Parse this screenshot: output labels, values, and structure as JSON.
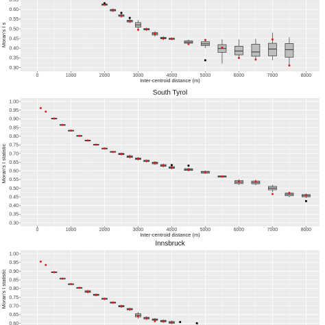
{
  "style": {
    "panel_background": "#ebebeb",
    "grid_major": "#ffffff",
    "box_fill": "#bdbdbd",
    "box_stroke": "#333333",
    "mean_point": "#e41a1c",
    "outlier_point": "#000000"
  },
  "chart_data": [
    {
      "type": "boxplot",
      "title": "",
      "xlabel": "Inter-centroid distance (m)",
      "ylabel": "Moran's I s",
      "xlim": [
        -500,
        8400
      ],
      "ylim": [
        0.28,
        0.67
      ],
      "xticks": [
        0,
        1000,
        2000,
        3000,
        4000,
        5000,
        6000,
        7000,
        8000
      ],
      "yticks": [
        0.3,
        0.35,
        0.4,
        0.45,
        0.5,
        0.55,
        0.6,
        0.65
      ],
      "ytick_labels": [
        "0.30",
        "0.35",
        "0.40",
        "0.45",
        "0.50",
        "0.55",
        "0.60",
        "0.65"
      ],
      "boxes": [
        {
          "x": 1750,
          "q1": 0.657,
          "median": 0.659,
          "q3": 0.661,
          "lo": 0.655,
          "hi": 0.663,
          "mean": 0.658
        },
        {
          "x": 2000,
          "q1": 0.622,
          "median": 0.625,
          "q3": 0.628,
          "lo": 0.618,
          "hi": 0.632,
          "mean": 0.624,
          "outliers": [
            0.632
          ]
        },
        {
          "x": 2250,
          "q1": 0.592,
          "median": 0.596,
          "q3": 0.6,
          "lo": 0.587,
          "hi": 0.605,
          "mean": 0.594
        },
        {
          "x": 2500,
          "q1": 0.564,
          "median": 0.568,
          "q3": 0.572,
          "lo": 0.558,
          "hi": 0.578,
          "mean": 0.566,
          "outliers": [
            0.582
          ]
        },
        {
          "x": 2750,
          "q1": 0.535,
          "median": 0.54,
          "q3": 0.544,
          "lo": 0.529,
          "hi": 0.55,
          "mean": 0.538,
          "outliers": [
            0.556
          ]
        },
        {
          "x": 3000,
          "q1": 0.508,
          "median": 0.52,
          "q3": 0.532,
          "lo": 0.49,
          "hi": 0.545,
          "mean": 0.495
        },
        {
          "x": 3250,
          "q1": 0.494,
          "median": 0.497,
          "q3": 0.501,
          "lo": 0.489,
          "hi": 0.506,
          "mean": 0.497
        },
        {
          "x": 3500,
          "q1": 0.468,
          "median": 0.475,
          "q3": 0.48,
          "lo": 0.46,
          "hi": 0.488,
          "mean": 0.474
        },
        {
          "x": 3750,
          "q1": 0.448,
          "median": 0.452,
          "q3": 0.456,
          "lo": 0.442,
          "hi": 0.462,
          "mean": 0.449
        },
        {
          "x": 4000,
          "q1": 0.445,
          "median": 0.448,
          "q3": 0.451,
          "lo": 0.44,
          "hi": 0.456,
          "mean": 0.448
        },
        {
          "x": 4500,
          "q1": 0.425,
          "median": 0.431,
          "q3": 0.437,
          "lo": 0.418,
          "hi": 0.444,
          "mean": 0.421
        },
        {
          "x": 5000,
          "q1": 0.413,
          "median": 0.422,
          "q3": 0.433,
          "lo": 0.4,
          "hi": 0.445,
          "mean": 0.442,
          "outliers": [
            0.337
          ]
        },
        {
          "x": 5500,
          "q1": 0.378,
          "median": 0.398,
          "q3": 0.418,
          "lo": 0.32,
          "hi": 0.445,
          "mean": 0.403
        },
        {
          "x": 6000,
          "q1": 0.365,
          "median": 0.385,
          "q3": 0.41,
          "lo": 0.345,
          "hi": 0.445,
          "mean": 0.349
        },
        {
          "x": 6500,
          "q1": 0.358,
          "median": 0.38,
          "q3": 0.42,
          "lo": 0.335,
          "hi": 0.448,
          "mean": 0.341
        },
        {
          "x": 7000,
          "q1": 0.36,
          "median": 0.395,
          "q3": 0.425,
          "lo": 0.338,
          "hi": 0.48,
          "mean": 0.445
        },
        {
          "x": 7500,
          "q1": 0.353,
          "median": 0.392,
          "q3": 0.424,
          "lo": 0.315,
          "hi": 0.456,
          "mean": 0.31
        }
      ]
    },
    {
      "type": "boxplot",
      "title": "South Tyrol",
      "xlabel": "Inter-centroid distance (m)",
      "ylabel": "Moran's I statistic",
      "xlim": [
        -500,
        8400
      ],
      "ylim": [
        0.28,
        1.02
      ],
      "xticks": [
        0,
        1000,
        2000,
        3000,
        4000,
        5000,
        6000,
        7000,
        8000
      ],
      "yticks": [
        0.3,
        0.35,
        0.4,
        0.45,
        0.5,
        0.55,
        0.6,
        0.65,
        0.7,
        0.75,
        0.8,
        0.85,
        0.9,
        0.95,
        1.0
      ],
      "ytick_labels": [
        "0.30",
        "0.35",
        "0.40",
        "0.45",
        "0.50",
        "0.55",
        "0.60",
        "0.65",
        "0.70",
        "0.75",
        "0.80",
        "0.85",
        "0.90",
        "0.95",
        "1.00"
      ],
      "boxes": [
        {
          "x": 100,
          "mean": 0.962
        },
        {
          "x": 250,
          "mean": 0.942
        },
        {
          "x": 500,
          "q1": 0.9,
          "median": 0.902,
          "q3": 0.904,
          "lo": 0.899,
          "hi": 0.905,
          "mean": 0.902
        },
        {
          "x": 750,
          "q1": 0.863,
          "median": 0.865,
          "q3": 0.867,
          "lo": 0.861,
          "hi": 0.869,
          "mean": 0.865
        },
        {
          "x": 1000,
          "q1": 0.83,
          "median": 0.832,
          "q3": 0.834,
          "lo": 0.828,
          "hi": 0.836,
          "mean": 0.832
        },
        {
          "x": 1250,
          "q1": 0.8,
          "median": 0.802,
          "q3": 0.804,
          "lo": 0.798,
          "hi": 0.806,
          "mean": 0.802
        },
        {
          "x": 1500,
          "q1": 0.773,
          "median": 0.775,
          "q3": 0.777,
          "lo": 0.771,
          "hi": 0.779,
          "mean": 0.775
        },
        {
          "x": 1750,
          "q1": 0.749,
          "median": 0.751,
          "q3": 0.753,
          "lo": 0.747,
          "hi": 0.755,
          "mean": 0.751
        },
        {
          "x": 2000,
          "q1": 0.727,
          "median": 0.729,
          "q3": 0.731,
          "lo": 0.725,
          "hi": 0.733,
          "mean": 0.729
        },
        {
          "x": 2250,
          "q1": 0.707,
          "median": 0.71,
          "q3": 0.712,
          "lo": 0.703,
          "hi": 0.715,
          "mean": 0.709
        },
        {
          "x": 2500,
          "q1": 0.693,
          "median": 0.697,
          "q3": 0.701,
          "lo": 0.688,
          "hi": 0.706,
          "mean": 0.697
        },
        {
          "x": 2750,
          "q1": 0.677,
          "median": 0.682,
          "q3": 0.687,
          "lo": 0.671,
          "hi": 0.693,
          "mean": 0.682
        },
        {
          "x": 3000,
          "q1": 0.665,
          "median": 0.67,
          "q3": 0.674,
          "lo": 0.659,
          "hi": 0.68,
          "mean": 0.669
        },
        {
          "x": 3250,
          "q1": 0.653,
          "median": 0.657,
          "q3": 0.661,
          "lo": 0.648,
          "hi": 0.666,
          "mean": 0.657
        },
        {
          "x": 3500,
          "q1": 0.64,
          "median": 0.645,
          "q3": 0.65,
          "lo": 0.634,
          "hi": 0.656,
          "mean": 0.645
        },
        {
          "x": 3750,
          "q1": 0.626,
          "median": 0.631,
          "q3": 0.636,
          "lo": 0.62,
          "hi": 0.642,
          "mean": 0.631
        },
        {
          "x": 4000,
          "q1": 0.614,
          "median": 0.619,
          "q3": 0.624,
          "lo": 0.608,
          "hi": 0.63,
          "mean": 0.619,
          "outliers": [
            0.633
          ]
        },
        {
          "x": 4500,
          "q1": 0.602,
          "median": 0.608,
          "q3": 0.612,
          "lo": 0.596,
          "hi": 0.618,
          "mean": 0.606,
          "outliers": [
            0.63
          ]
        },
        {
          "x": 5000,
          "q1": 0.587,
          "median": 0.593,
          "q3": 0.597,
          "lo": 0.582,
          "hi": 0.602,
          "mean": 0.59
        },
        {
          "x": 5500,
          "q1": 0.564,
          "median": 0.568,
          "q3": 0.571,
          "lo": 0.56,
          "hi": 0.574,
          "mean": 0.567
        },
        {
          "x": 6000,
          "q1": 0.526,
          "median": 0.535,
          "q3": 0.544,
          "lo": 0.518,
          "hi": 0.552,
          "mean": 0.536
        },
        {
          "x": 6500,
          "q1": 0.525,
          "median": 0.533,
          "q3": 0.541,
          "lo": 0.517,
          "hi": 0.549,
          "mean": 0.538
        },
        {
          "x": 7000,
          "q1": 0.49,
          "median": 0.5,
          "q3": 0.51,
          "lo": 0.478,
          "hi": 0.52,
          "mean": 0.466
        },
        {
          "x": 7500,
          "q1": 0.456,
          "median": 0.465,
          "q3": 0.472,
          "lo": 0.448,
          "hi": 0.481,
          "mean": 0.472
        },
        {
          "x": 8000,
          "q1": 0.45,
          "median": 0.457,
          "q3": 0.463,
          "lo": 0.443,
          "hi": 0.47,
          "mean": 0.458,
          "outliers": [
            0.425
          ]
        }
      ]
    },
    {
      "type": "boxplot",
      "title": "Innsbruck",
      "xlabel": "",
      "ylabel": "Moran's I statistic",
      "xlim": [
        -500,
        8400
      ],
      "ylim": [
        0.59,
        1.02
      ],
      "xticks": [],
      "yticks": [
        0.6,
        0.65,
        0.7,
        0.75,
        0.8,
        0.85,
        0.9,
        0.95,
        1.0
      ],
      "ytick_labels": [
        "0.60",
        "0.65",
        "0.70",
        "0.75",
        "0.80",
        "0.85",
        "0.90",
        "0.95",
        "1.00"
      ],
      "boxes": [
        {
          "x": 100,
          "mean": 0.955
        },
        {
          "x": 250,
          "mean": 0.935
        },
        {
          "x": 500,
          "q1": 0.892,
          "median": 0.894,
          "q3": 0.896,
          "lo": 0.89,
          "hi": 0.898,
          "mean": 0.894
        },
        {
          "x": 750,
          "q1": 0.855,
          "median": 0.857,
          "q3": 0.859,
          "lo": 0.853,
          "hi": 0.861,
          "mean": 0.857
        },
        {
          "x": 1000,
          "q1": 0.823,
          "median": 0.825,
          "q3": 0.827,
          "lo": 0.821,
          "hi": 0.829,
          "mean": 0.825
        },
        {
          "x": 1250,
          "q1": 0.802,
          "median": 0.804,
          "q3": 0.806,
          "lo": 0.8,
          "hi": 0.808,
          "mean": 0.804
        },
        {
          "x": 1500,
          "q1": 0.778,
          "median": 0.783,
          "q3": 0.787,
          "lo": 0.772,
          "hi": 0.792,
          "mean": 0.781
        },
        {
          "x": 1750,
          "q1": 0.76,
          "median": 0.764,
          "q3": 0.767,
          "lo": 0.755,
          "hi": 0.771,
          "mean": 0.762
        },
        {
          "x": 2000,
          "q1": 0.738,
          "median": 0.741,
          "q3": 0.744,
          "lo": 0.733,
          "hi": 0.748,
          "mean": 0.741
        },
        {
          "x": 2250,
          "q1": 0.716,
          "median": 0.719,
          "q3": 0.722,
          "lo": 0.711,
          "hi": 0.726,
          "mean": 0.719
        },
        {
          "x": 2500,
          "q1": 0.694,
          "median": 0.698,
          "q3": 0.702,
          "lo": 0.688,
          "hi": 0.707,
          "mean": 0.697
        },
        {
          "x": 2750,
          "q1": 0.677,
          "median": 0.681,
          "q3": 0.685,
          "lo": 0.671,
          "hi": 0.69,
          "mean": 0.68
        },
        {
          "x": 3000,
          "q1": 0.637,
          "median": 0.646,
          "q3": 0.655,
          "lo": 0.626,
          "hi": 0.665,
          "mean": 0.64
        },
        {
          "x": 3250,
          "q1": 0.625,
          "median": 0.63,
          "q3": 0.634,
          "lo": 0.618,
          "hi": 0.64,
          "mean": 0.629
        },
        {
          "x": 3500,
          "q1": 0.617,
          "median": 0.621,
          "q3": 0.625,
          "lo": 0.611,
          "hi": 0.63,
          "mean": 0.612
        },
        {
          "x": 3750,
          "q1": 0.608,
          "median": 0.613,
          "q3": 0.617,
          "lo": 0.602,
          "hi": 0.622,
          "mean": 0.611
        },
        {
          "x": 4000,
          "q1": 0.6,
          "median": 0.605,
          "q3": 0.61,
          "lo": 0.595,
          "hi": 0.616,
          "mean": 0.604
        },
        {
          "x": 4250,
          "outliers": [
            0.607
          ]
        },
        {
          "x": 4750,
          "outliers": [
            0.6
          ]
        }
      ]
    }
  ]
}
